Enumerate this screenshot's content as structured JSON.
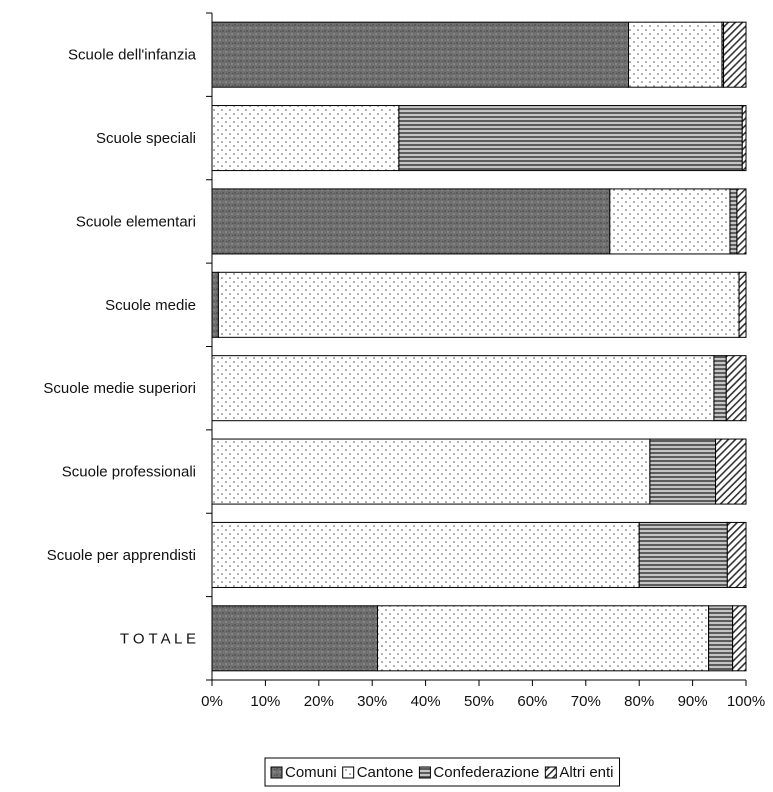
{
  "chart_data": {
    "type": "bar",
    "orientation": "horizontal",
    "stacked": "percent",
    "categories": [
      "Scuole dell'infanzia",
      "Scuole speciali",
      "Scuole elementari",
      "Scuole medie",
      "Scuole medie superiori",
      "Scuole professionali",
      "Scuole per apprendisti",
      "T O T A L E"
    ],
    "series": [
      {
        "name": "Comuni",
        "pattern": "dark-textured",
        "values": [
          78,
          0,
          74.5,
          1.2,
          0,
          0,
          0,
          31
        ]
      },
      {
        "name": "Cantone",
        "pattern": "dotted",
        "values": [
          17.5,
          35,
          22.5,
          97.5,
          94,
          82,
          80,
          62
        ]
      },
      {
        "name": "Confederazione",
        "pattern": "horizontal-lines",
        "values": [
          0.3,
          64.3,
          1.3,
          0,
          2.3,
          12.3,
          16.5,
          4.5
        ]
      },
      {
        "name": "Altri enti",
        "pattern": "diagonal-lines",
        "values": [
          4.2,
          0.7,
          1.7,
          1.3,
          3.7,
          5.7,
          3.5,
          2.5
        ]
      }
    ],
    "xlim": [
      0,
      100
    ],
    "x_ticks": [
      "0%",
      "10%",
      "20%",
      "30%",
      "40%",
      "50%",
      "60%",
      "70%",
      "80%",
      "90%",
      "100%"
    ],
    "title": "",
    "xlabel": "",
    "ylabel": "",
    "grid": false,
    "legend_position": "bottom"
  }
}
